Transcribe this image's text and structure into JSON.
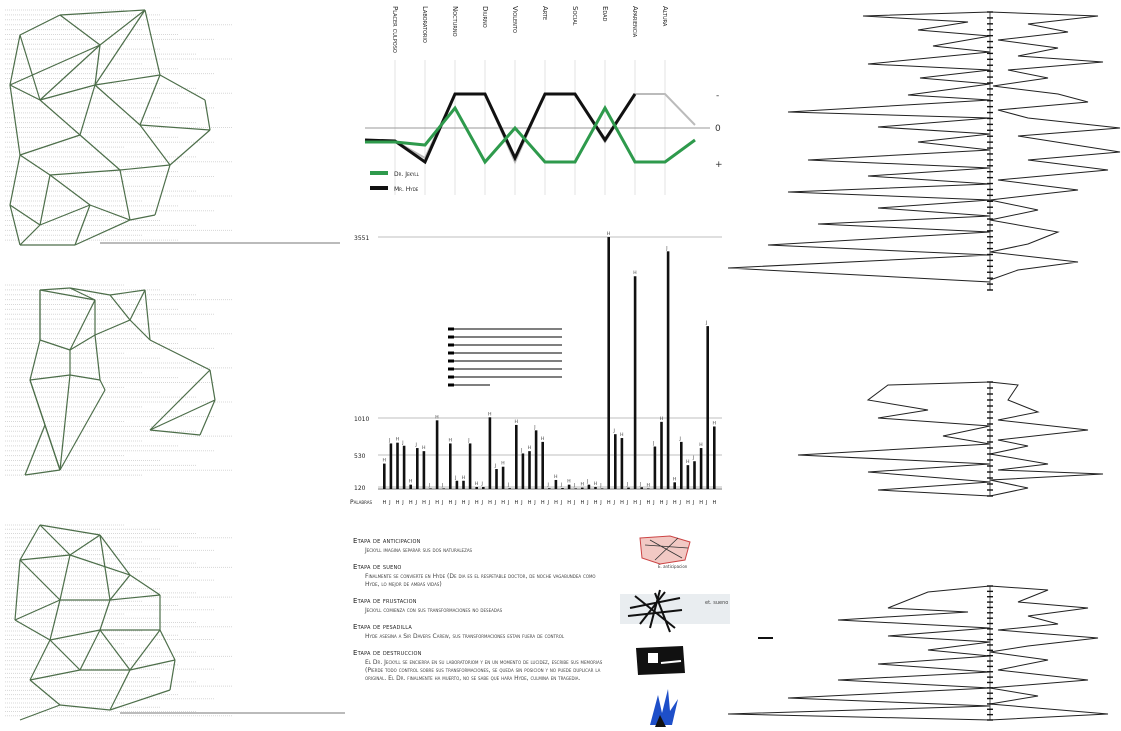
{
  "trait_chart": {
    "traits": [
      "Placer culposo",
      "Laboratorio",
      "Nocturno",
      "Diurno",
      "Violento",
      "Arte",
      "Social",
      "Edad",
      "Apariencia",
      "Altura"
    ],
    "scale_labels": [
      "-",
      "0",
      "+"
    ],
    "legend": [
      {
        "name": "Dr. Jekyll",
        "color": "#2e9a4c"
      },
      {
        "name": "Mr. Hyde",
        "color": "#111111"
      }
    ]
  },
  "chart_data": {
    "type": "bar",
    "ylabel": "Palabras",
    "y_ticks": [
      "3551",
      "1010",
      "530",
      "120"
    ],
    "y_tick_values": [
      3551,
      1010,
      530,
      120
    ],
    "category_labels": [
      "H",
      "J",
      "H",
      "J",
      "H",
      "J",
      "H",
      "J",
      "H",
      "J",
      "H",
      "J",
      "H",
      "J",
      "H",
      "J",
      "H",
      "J",
      "H",
      "J",
      "H",
      "J",
      "H",
      "J",
      "H",
      "J",
      "H",
      "J",
      "H",
      "J",
      "H",
      "J",
      "H",
      "J",
      "H",
      "J",
      "H",
      "J",
      "H",
      "J",
      "H",
      "J",
      "H",
      "J",
      "H",
      "J",
      "H",
      "J",
      "H",
      "J",
      "H"
    ],
    "bar_labels": [
      "H",
      "J",
      "H",
      "J",
      "H",
      "J",
      "H",
      "J",
      "H",
      "J",
      "H",
      "J",
      "H",
      "J",
      "H",
      "J",
      "H",
      "J",
      "H",
      "J",
      "H",
      "J",
      "H",
      "J",
      "H",
      "J",
      "H",
      "J",
      "H",
      "J",
      "H",
      "J",
      "H",
      "J",
      "H",
      "J",
      "H",
      "J",
      "H",
      "J",
      "H",
      "J",
      "H",
      "J",
      "H",
      "J",
      "H",
      "J",
      "H",
      "J",
      "H"
    ],
    "values": [
      420,
      680,
      690,
      650,
      150,
      620,
      580,
      40,
      980,
      40,
      680,
      200,
      200,
      680,
      120,
      120,
      1020,
      350,
      380,
      50,
      920,
      550,
      580,
      850,
      700,
      50,
      210,
      60,
      150,
      40,
      80,
      150,
      120,
      40,
      3550,
      800,
      750,
      80,
      3000,
      100,
      40,
      640,
      960,
      3350,
      180,
      700,
      400,
      450,
      620,
      2300,
      900
    ]
  },
  "stages": [
    {
      "title": "Etapa de anticipacion",
      "desc": "Jeckyll imagina separar sus dos naturalezas"
    },
    {
      "title": "Etapa de sueno",
      "desc": "Finalmente se convierte en Hyde (De dia es el respetable doctor, de noche vagabundea como Hyde, lo mejor de ambas vidas)"
    },
    {
      "title": "Etapa de frustacion",
      "desc": "Jeckyll comienza con sus transformaciones no deseadas"
    },
    {
      "title": "Etapa de pesadilla",
      "desc": "Hyde asesina a Sir Davers Carew, sus transformaciones estan fuera de control"
    },
    {
      "title": "Etapa de destruccion",
      "desc": "El Dr. Jeckyll se encierra en su laboratoriom y en un momento de lucidez, escribe sus memorias (Pierde todo control sobre sus transformaciones, se queda sin posicion y no puede duplicar la original. El Dr. finalmente ha muerto, no se sabe que hara Hyde, culmina en tragedia."
    }
  ],
  "thumb_captions": [
    "E. anticipacion",
    "et. sueno"
  ],
  "colors": {
    "network_line": "#4d6e4a",
    "jekyll": "#2e9a4c",
    "hyde": "#111111"
  }
}
